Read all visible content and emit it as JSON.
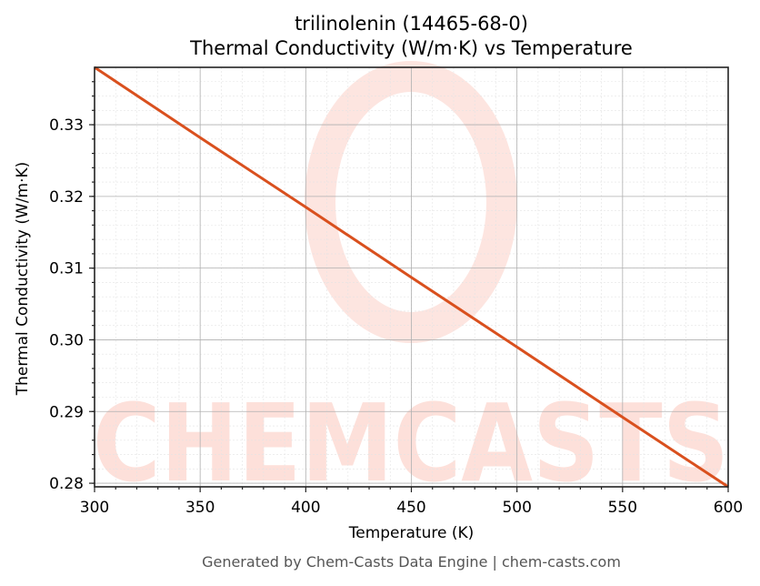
{
  "chart_data": {
    "type": "line",
    "title": "trilinolenin (14465-68-0)",
    "subtitle": "Thermal Conductivity (W/m·K) vs Temperature",
    "xlabel": "Temperature (K)",
    "ylabel": "Thermal Conductivity (W/m·K)",
    "xlim": [
      300,
      600
    ],
    "ylim": [
      0.2795,
      0.338
    ],
    "xticks": [
      300,
      350,
      400,
      450,
      500,
      550,
      600
    ],
    "xtick_labels": [
      "300",
      "350",
      "400",
      "450",
      "500",
      "550",
      "600"
    ],
    "yticks": [
      0.28,
      0.29,
      0.3,
      0.31,
      0.32,
      0.33
    ],
    "ytick_labels": [
      "0.28",
      "0.29",
      "0.30",
      "0.31",
      "0.32",
      "0.33"
    ],
    "grid": true,
    "legend": null,
    "series": [
      {
        "name": "Thermal Conductivity",
        "color": "#d9501e",
        "x": [
          300,
          350,
          400,
          450,
          500,
          550,
          600
        ],
        "values": [
          0.338,
          0.3282,
          0.3185,
          0.3087,
          0.299,
          0.2892,
          0.2795
        ]
      }
    ],
    "watermark": "CHEMCASTS"
  },
  "footer": "Generated by Chem-Casts Data Engine | chem-casts.com",
  "colors": {
    "line": "#d9501e",
    "watermark": "#fde0da",
    "footer_text": "#555555"
  }
}
